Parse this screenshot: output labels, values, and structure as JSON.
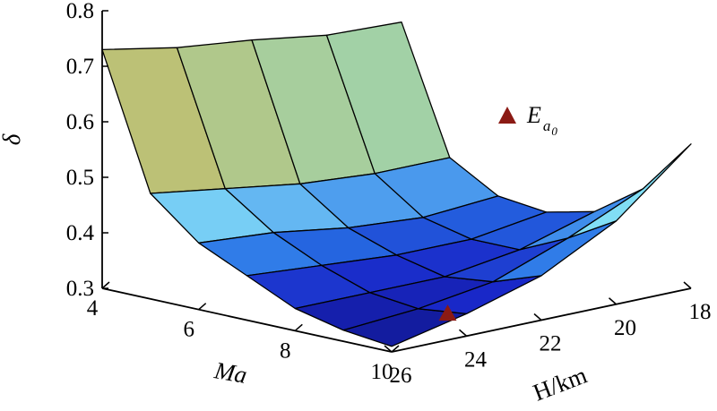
{
  "chart_data": {
    "type": "surface3d",
    "zlabel": "δ",
    "xlabel": "Ma",
    "ylabel": "H/km",
    "zlim": [
      0.3,
      0.8
    ],
    "z_ticks": [
      "0.3",
      "0.4",
      "0.5",
      "0.6",
      "0.7",
      "0.8"
    ],
    "x_ticks": [
      "4",
      "6",
      "8",
      "10"
    ],
    "y_ticks": [
      "18",
      "20",
      "22",
      "24",
      "26"
    ],
    "ma_values": [
      4,
      5,
      6,
      7,
      8,
      9,
      10
    ],
    "h_values": [
      26,
      24,
      22,
      20,
      18
    ],
    "surface_z": [
      [
        0.73,
        0.705,
        0.69,
        0.67,
        0.665
      ],
      [
        0.49,
        0.47,
        0.45,
        0.44,
        0.44
      ],
      [
        0.42,
        0.41,
        0.39,
        0.38,
        0.39
      ],
      [
        0.38,
        0.37,
        0.36,
        0.36,
        0.38
      ],
      [
        0.34,
        0.34,
        0.34,
        0.36,
        0.4
      ],
      [
        0.32,
        0.33,
        0.35,
        0.4,
        0.46
      ],
      [
        0.31,
        0.34,
        0.38,
        0.45,
        0.56
      ]
    ],
    "legend": {
      "label": "E",
      "sub": "a",
      "subsub": "0",
      "marker": "triangle",
      "color": "#8b1a14"
    },
    "marker_point": {
      "ma": 9.3,
      "h": 23.6,
      "z": 0.315
    }
  }
}
